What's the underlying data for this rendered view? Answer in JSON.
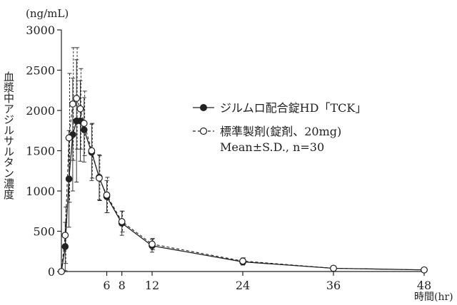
{
  "chart_data": {
    "type": "line",
    "ylabel": "血漿中アジルサルタン濃度",
    "yunit": "(ng/mL)",
    "xunit": "時間(hr)",
    "xlim": [
      0,
      48
    ],
    "ylim": [
      0,
      3000
    ],
    "xticks": [
      6,
      8,
      12,
      24,
      36,
      48
    ],
    "yticks": [
      0,
      500,
      1000,
      1500,
      2000,
      2500,
      3000
    ],
    "legend_position": "right",
    "footnote": "Mean±S.D., n=30",
    "series": [
      {
        "name": "ジルムロ配合錠HD「TCK」",
        "marker": "filled-circle",
        "line": "solid",
        "x": [
          0,
          0.5,
          1,
          1.5,
          2,
          2.5,
          3,
          4,
          5,
          6,
          8,
          12,
          24,
          36,
          48
        ],
        "y": [
          0,
          310,
          1150,
          1700,
          1870,
          1870,
          1760,
          1480,
          1170,
          930,
          600,
          320,
          120,
          40,
          20
        ],
        "sd": [
          0,
          300,
          600,
          700,
          760,
          500,
          400,
          350,
          280,
          200,
          150,
          80,
          40,
          20,
          10
        ]
      },
      {
        "name": "標準製剤(錠剤、20mg)",
        "marker": "open-circle",
        "line": "dashed",
        "x": [
          0,
          0.5,
          1,
          1.5,
          2,
          2.5,
          3,
          4,
          5,
          6,
          8,
          12,
          24,
          36,
          48
        ],
        "y": [
          0,
          450,
          1660,
          2080,
          2150,
          2020,
          1840,
          1500,
          1160,
          950,
          620,
          340,
          130,
          40,
          20
        ],
        "sd": [
          0,
          350,
          800,
          700,
          630,
          500,
          400,
          340,
          280,
          220,
          130,
          70,
          40,
          20,
          10
        ]
      }
    ]
  }
}
